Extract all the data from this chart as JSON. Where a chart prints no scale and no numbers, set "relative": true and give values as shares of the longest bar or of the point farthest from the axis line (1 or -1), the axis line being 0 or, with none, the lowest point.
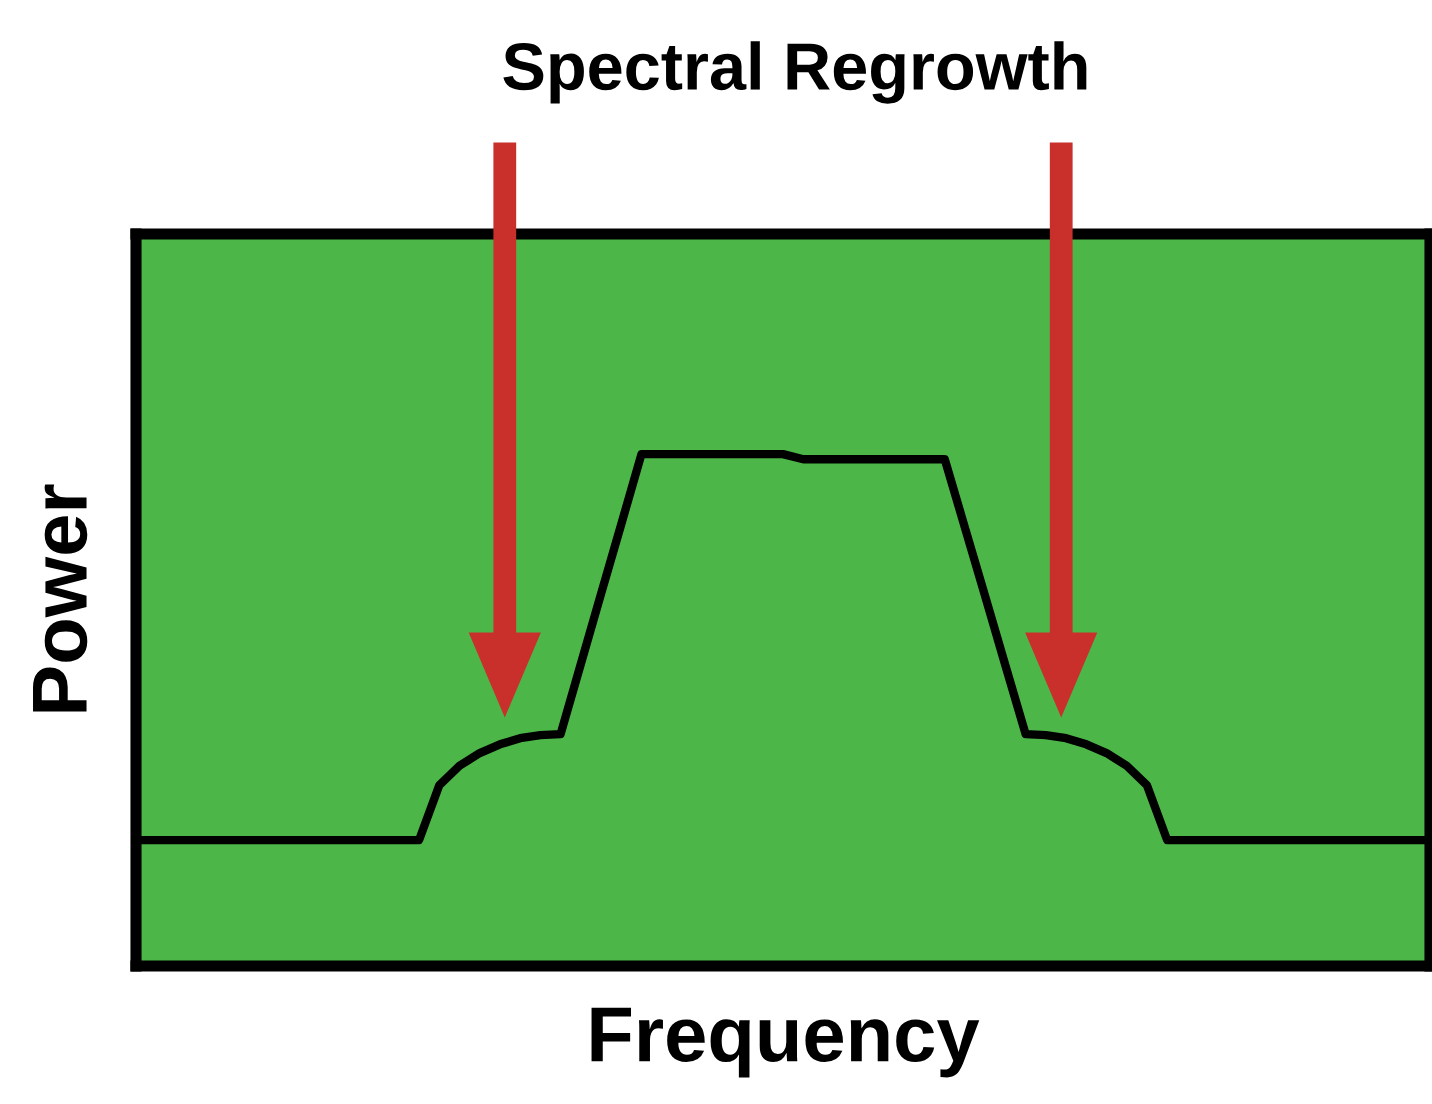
{
  "chart_data": {
    "type": "line",
    "relative": true,
    "title": "Spectral Regrowth",
    "xlabel": "Frequency",
    "ylabel": "Power",
    "categories": [
      null,
      null,
      null,
      null,
      null,
      null,
      null,
      null,
      null,
      null,
      null,
      null,
      null,
      null,
      null,
      null,
      null,
      null,
      null,
      null,
      null,
      null,
      null,
      null,
      null,
      null,
      null,
      null,
      null,
      null,
      null,
      null,
      null,
      null,
      null,
      null,
      null,
      null,
      null,
      null,
      null,
      null,
      null,
      null,
      null,
      null,
      null,
      null,
      null,
      null,
      null,
      null,
      null,
      null,
      null,
      null,
      null,
      null,
      null,
      null,
      null,
      null,
      null,
      null,
      null
    ],
    "series": [
      {
        "color": "#000000",
        "values": [
          0.246,
          0.246,
          0.246,
          0.246,
          0.246,
          0.246,
          0.246,
          0.246,
          0.246,
          0.246,
          0.246,
          0.246,
          0.246,
          0.246,
          0.246,
          0.353,
          0.391,
          0.416,
          0.433,
          0.445,
          0.451,
          0.453,
          0.59,
          0.727,
          0.863,
          1.0,
          1.0,
          1.0,
          1.0,
          1.0,
          1.0,
          1.0,
          1.0,
          0.99,
          0.99,
          0.99,
          0.99,
          0.99,
          0.99,
          0.99,
          0.99,
          0.856,
          0.722,
          0.587,
          0.453,
          0.451,
          0.445,
          0.433,
          0.416,
          0.391,
          0.353,
          0.246,
          0.246,
          0.246,
          0.246,
          0.246,
          0.246,
          0.246,
          0.246,
          0.246,
          0.246,
          0.246,
          0.246,
          0.246,
          0.246
        ]
      }
    ],
    "tick_labels": false,
    "grid": false,
    "legend": false,
    "marker": "none",
    "line_style": "solid"
  }
}
